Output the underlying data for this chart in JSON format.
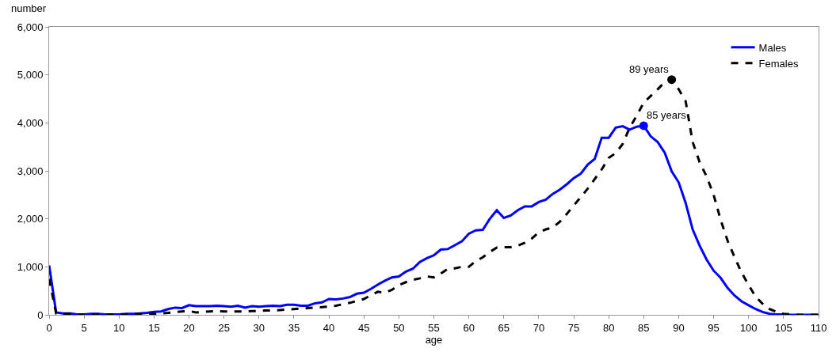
{
  "chart_data": {
    "type": "line",
    "xlabel": "age",
    "ylabel": "number",
    "x": [
      0,
      1,
      2,
      3,
      4,
      5,
      6,
      7,
      8,
      9,
      10,
      11,
      12,
      13,
      14,
      15,
      16,
      17,
      18,
      19,
      20,
      21,
      22,
      23,
      24,
      25,
      26,
      27,
      28,
      29,
      30,
      31,
      32,
      33,
      34,
      35,
      36,
      37,
      38,
      39,
      40,
      41,
      42,
      43,
      44,
      45,
      46,
      47,
      48,
      49,
      50,
      51,
      52,
      53,
      54,
      55,
      56,
      57,
      58,
      59,
      60,
      61,
      62,
      63,
      64,
      65,
      66,
      67,
      68,
      69,
      70,
      71,
      72,
      73,
      74,
      75,
      76,
      77,
      78,
      79,
      80,
      81,
      82,
      83,
      84,
      85,
      86,
      87,
      88,
      89,
      90,
      91,
      92,
      93,
      94,
      95,
      96,
      97,
      98,
      99,
      100,
      101,
      102,
      103,
      104,
      105,
      106,
      107,
      108,
      109,
      110
    ],
    "series": [
      {
        "name": "Males",
        "color": "#0000ff",
        "line_style": "solid",
        "values": [
          1030,
          50,
          30,
          30,
          10,
          10,
          20,
          20,
          10,
          10,
          10,
          20,
          20,
          30,
          40,
          60,
          70,
          120,
          150,
          140,
          200,
          180,
          180,
          180,
          190,
          180,
          170,
          190,
          150,
          180,
          170,
          180,
          190,
          180,
          210,
          210,
          190,
          190,
          240,
          260,
          330,
          320,
          340,
          370,
          440,
          460,
          540,
          630,
          710,
          780,
          800,
          900,
          960,
          1100,
          1180,
          1240,
          1360,
          1370,
          1450,
          1530,
          1690,
          1760,
          1770,
          2000,
          2180,
          2020,
          2070,
          2180,
          2260,
          2260,
          2350,
          2400,
          2520,
          2610,
          2720,
          2850,
          2940,
          3130,
          3250,
          3690,
          3690,
          3900,
          3930,
          3860,
          3920,
          3940,
          3720,
          3600,
          3380,
          2990,
          2760,
          2330,
          1780,
          1440,
          1150,
          920,
          770,
          560,
          400,
          280,
          200,
          120,
          60,
          20,
          10,
          10,
          0,
          0,
          0,
          0,
          0
        ]
      },
      {
        "name": "Females",
        "color": "#000000",
        "line_style": "dashed",
        "values": [
          750,
          30,
          20,
          20,
          10,
          10,
          10,
          10,
          10,
          10,
          10,
          10,
          10,
          20,
          20,
          20,
          30,
          40,
          60,
          70,
          80,
          50,
          60,
          70,
          80,
          70,
          70,
          70,
          70,
          80,
          80,
          90,
          90,
          100,
          110,
          120,
          130,
          140,
          150,
          160,
          170,
          190,
          220,
          250,
          290,
          330,
          410,
          480,
          460,
          520,
          620,
          680,
          730,
          760,
          800,
          780,
          860,
          960,
          970,
          1000,
          1000,
          1120,
          1200,
          1310,
          1400,
          1410,
          1410,
          1440,
          1500,
          1590,
          1720,
          1780,
          1820,
          1940,
          2100,
          2280,
          2450,
          2630,
          2830,
          3030,
          3270,
          3370,
          3560,
          3900,
          4150,
          4420,
          4560,
          4700,
          4850,
          4900,
          4700,
          4450,
          3600,
          3180,
          2880,
          2500,
          1980,
          1540,
          1200,
          880,
          620,
          380,
          230,
          120,
          60,
          20,
          10,
          0,
          0,
          0,
          0
        ]
      },
      {
        "type": "scatter",
        "color": "#0000ff",
        "marker": "circle",
        "x": [
          85
        ],
        "values": [
          3940
        ]
      },
      {
        "type": "scatter",
        "color": "#000000",
        "marker": "circle",
        "x": [
          89
        ],
        "values": [
          4900
        ]
      }
    ],
    "annotations": [
      {
        "text": "89 years",
        "x": 89,
        "y": 4900
      },
      {
        "text": "85 years",
        "x": 85,
        "y": 3940
      }
    ],
    "xlim": [
      0,
      110
    ],
    "xticks": [
      0,
      5,
      10,
      15,
      20,
      25,
      30,
      35,
      40,
      45,
      50,
      55,
      60,
      65,
      70,
      75,
      80,
      85,
      90,
      95,
      100,
      105,
      110
    ],
    "ylim": [
      0,
      6000
    ],
    "yticks": [
      {
        "value": 0,
        "label": "0"
      },
      {
        "value": 1000,
        "label": "1,000"
      },
      {
        "value": 2000,
        "label": "2,000"
      },
      {
        "value": 3000,
        "label": "3,000"
      },
      {
        "value": 4000,
        "label": "4,000"
      },
      {
        "value": 5000,
        "label": "5,000"
      },
      {
        "value": 6000,
        "label": "6,000"
      }
    ],
    "grid": false,
    "legend": "top right",
    "marker": "none"
  }
}
